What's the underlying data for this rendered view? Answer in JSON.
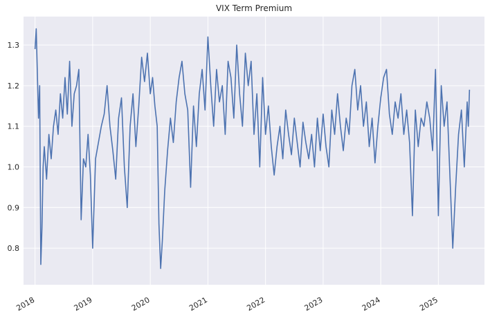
{
  "chart_data": {
    "type": "line",
    "title": "VIX Term Premium",
    "xlabel": "",
    "ylabel": "",
    "xlim": [
      2017.8,
      2025.8
    ],
    "ylim": [
      0.71,
      1.37
    ],
    "x_ticks": [
      "2018",
      "2019",
      "2020",
      "2021",
      "2022",
      "2023",
      "2024",
      "2025"
    ],
    "y_ticks": [
      "0.8",
      "0.9",
      "1.0",
      "1.1",
      "1.2",
      "1.3"
    ],
    "grid": true,
    "legend": "none",
    "colors": {
      "line": "#4c72b0",
      "background": "#eaeaf2",
      "grid": "#ffffff"
    },
    "series": [
      {
        "x": [
          2018.0,
          2018.02,
          2018.04,
          2018.06,
          2018.08,
          2018.1,
          2018.12,
          2018.14,
          2018.16,
          2018.2,
          2018.24,
          2018.28,
          2018.32,
          2018.36,
          2018.4,
          2018.44,
          2018.48,
          2018.52,
          2018.56,
          2018.6,
          2018.64,
          2018.68,
          2018.72,
          2018.76,
          2018.8,
          2018.84,
          2018.88,
          2018.92,
          2018.96,
          2019.0,
          2019.05,
          2019.1,
          2019.15,
          2019.2,
          2019.25,
          2019.3,
          2019.35,
          2019.4,
          2019.45,
          2019.5,
          2019.55,
          2019.6,
          2019.65,
          2019.7,
          2019.75,
          2019.8,
          2019.85,
          2019.9,
          2019.95,
          2020.0,
          2020.04,
          2020.08,
          2020.12,
          2020.15,
          2020.18,
          2020.21,
          2020.25,
          2020.3,
          2020.35,
          2020.4,
          2020.45,
          2020.5,
          2020.55,
          2020.6,
          2020.65,
          2020.7,
          2020.75,
          2020.8,
          2020.85,
          2020.9,
          2020.95,
          2021.0,
          2021.05,
          2021.1,
          2021.15,
          2021.2,
          2021.25,
          2021.3,
          2021.35,
          2021.4,
          2021.45,
          2021.5,
          2021.55,
          2021.6,
          2021.65,
          2021.7,
          2021.75,
          2021.8,
          2021.85,
          2021.9,
          2021.95,
          2022.0,
          2022.05,
          2022.1,
          2022.15,
          2022.2,
          2022.25,
          2022.3,
          2022.35,
          2022.4,
          2022.45,
          2022.5,
          2022.55,
          2022.6,
          2022.65,
          2022.7,
          2022.75,
          2022.8,
          2022.85,
          2022.9,
          2022.95,
          2023.0,
          2023.05,
          2023.1,
          2023.15,
          2023.2,
          2023.25,
          2023.3,
          2023.35,
          2023.4,
          2023.45,
          2023.5,
          2023.55,
          2023.6,
          2023.65,
          2023.7,
          2023.75,
          2023.8,
          2023.85,
          2023.9,
          2023.95,
          2024.0,
          2024.05,
          2024.1,
          2024.15,
          2024.2,
          2024.25,
          2024.3,
          2024.35,
          2024.4,
          2024.45,
          2024.5,
          2024.55,
          2024.6,
          2024.65,
          2024.7,
          2024.75,
          2024.8,
          2024.85,
          2024.9,
          2024.95,
          2025.0,
          2025.05,
          2025.1,
          2025.15,
          2025.2,
          2025.25,
          2025.3,
          2025.35,
          2025.4,
          2025.45,
          2025.5,
          2025.52,
          2025.54
        ],
        "y": [
          1.29,
          1.34,
          1.23,
          1.12,
          1.2,
          0.76,
          0.85,
          1.0,
          1.05,
          0.97,
          1.08,
          1.02,
          1.1,
          1.14,
          1.08,
          1.18,
          1.12,
          1.22,
          1.13,
          1.26,
          1.1,
          1.18,
          1.2,
          1.24,
          0.87,
          1.02,
          1.0,
          1.08,
          0.98,
          0.8,
          1.02,
          1.06,
          1.1,
          1.13,
          1.2,
          1.1,
          1.04,
          0.97,
          1.12,
          1.17,
          1.0,
          0.9,
          1.1,
          1.18,
          1.05,
          1.15,
          1.27,
          1.21,
          1.28,
          1.18,
          1.22,
          1.15,
          1.1,
          0.86,
          0.75,
          0.82,
          0.94,
          1.04,
          1.12,
          1.06,
          1.16,
          1.22,
          1.26,
          1.18,
          1.14,
          0.95,
          1.15,
          1.05,
          1.18,
          1.24,
          1.14,
          1.32,
          1.2,
          1.1,
          1.24,
          1.16,
          1.2,
          1.08,
          1.26,
          1.22,
          1.12,
          1.3,
          1.18,
          1.1,
          1.28,
          1.2,
          1.26,
          1.08,
          1.18,
          1.0,
          1.22,
          1.08,
          1.15,
          1.05,
          0.98,
          1.05,
          1.1,
          1.02,
          1.14,
          1.08,
          1.03,
          1.12,
          1.06,
          1.0,
          1.11,
          1.06,
          1.02,
          1.08,
          1.0,
          1.12,
          1.04,
          1.13,
          1.05,
          1.0,
          1.14,
          1.08,
          1.18,
          1.1,
          1.04,
          1.12,
          1.08,
          1.2,
          1.24,
          1.14,
          1.2,
          1.1,
          1.16,
          1.05,
          1.12,
          1.01,
          1.1,
          1.17,
          1.22,
          1.24,
          1.13,
          1.08,
          1.16,
          1.12,
          1.18,
          1.08,
          1.14,
          1.06,
          0.88,
          1.14,
          1.05,
          1.12,
          1.1,
          1.16,
          1.12,
          1.04,
          1.24,
          0.88,
          1.2,
          1.1,
          1.16,
          0.98,
          0.8,
          0.95,
          1.08,
          1.14,
          1.0,
          1.16,
          1.1,
          1.19
        ]
      }
    ]
  }
}
